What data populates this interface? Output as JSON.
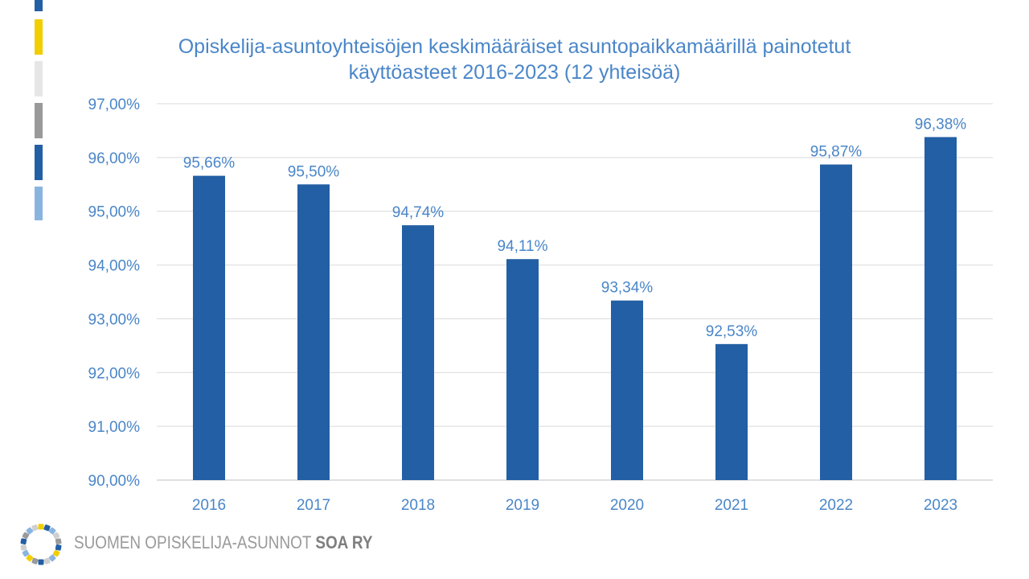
{
  "brand": {
    "stripes": [
      "#235fa4",
      "#f2cd00",
      "#e6e6e6",
      "#9a9a9a",
      "#235fa4",
      "#8ab4e0"
    ],
    "accent": "#235fa4",
    "text_color": "#4a86c8",
    "footer_name": "SUOMEN OPISKELIJA-ASUNNOT",
    "footer_abbr": "SOA RY",
    "logo_dot_colors": [
      "#f2cd00",
      "#235fa4",
      "#8ab4e0",
      "#cfcfcf",
      "#9a9a9a",
      "#235fa4",
      "#f2cd00",
      "#8ab4e0",
      "#cfcfcf",
      "#235fa4",
      "#9a9a9a",
      "#f2cd00",
      "#8ab4e0",
      "#cfcfcf",
      "#235fa4",
      "#9a9a9a",
      "#8ab4e0",
      "#cfcfcf"
    ]
  },
  "chart_data": {
    "type": "bar",
    "title_line1": "Opiskelija-asuntoyhteisöjen keskimääräiset asuntopaikkamäärillä painotetut",
    "title_line2": "käyttöasteet 2016-2023 (12 yhteisöä)",
    "xlabel": "",
    "ylabel": "",
    "categories": [
      "2016",
      "2017",
      "2018",
      "2019",
      "2020",
      "2021",
      "2022",
      "2023"
    ],
    "values": [
      95.66,
      95.5,
      94.74,
      94.11,
      93.34,
      92.53,
      95.87,
      96.38
    ],
    "data_labels": [
      "95,66%",
      "95,50%",
      "94,74%",
      "94,11%",
      "93,34%",
      "92,53%",
      "95,87%",
      "96,38%"
    ],
    "ylim": [
      90,
      97
    ],
    "yticks": [
      90,
      91,
      92,
      93,
      94,
      95,
      96,
      97
    ],
    "ytick_labels": [
      "90,00%",
      "91,00%",
      "92,00%",
      "93,00%",
      "94,00%",
      "95,00%",
      "96,00%",
      "97,00%"
    ],
    "grid": true,
    "legend": "none",
    "bar_color": "#235fa4",
    "grid_color": "#d9d9d9"
  }
}
